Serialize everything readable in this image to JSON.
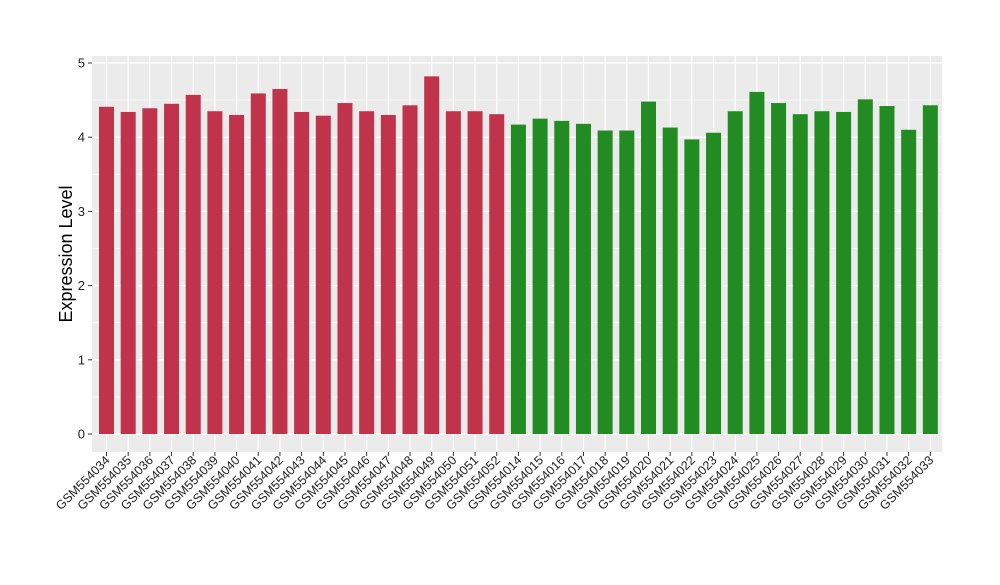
{
  "chart_data": {
    "type": "bar",
    "title": "",
    "xlabel": "",
    "ylabel": "Expression Level",
    "ylim": [
      0,
      5
    ],
    "yticks": [
      0,
      1,
      2,
      3,
      4,
      5
    ],
    "grid": true,
    "legend": "none",
    "categories": [
      "GSM554034",
      "GSM554035",
      "GSM554036",
      "GSM554037",
      "GSM554038",
      "GSM554039",
      "GSM554040",
      "GSM554041",
      "GSM554042",
      "GSM554043",
      "GSM554044",
      "GSM554045",
      "GSM554046",
      "GSM554047",
      "GSM554048",
      "GSM554049",
      "GSM554050",
      "GSM554051",
      "GSM554052",
      "GSM554014",
      "GSM554015",
      "GSM554016",
      "GSM554017",
      "GSM554018",
      "GSM554019",
      "GSM554020",
      "GSM554021",
      "GSM554022",
      "GSM554023",
      "GSM554024",
      "GSM554025",
      "GSM554026",
      "GSM554027",
      "GSM554028",
      "GSM554029",
      "GSM554030",
      "GSM554031",
      "GSM554032",
      "GSM554033"
    ],
    "values": [
      4.41,
      4.34,
      4.39,
      4.45,
      4.57,
      4.35,
      4.3,
      4.59,
      4.65,
      4.34,
      4.29,
      4.46,
      4.35,
      4.3,
      4.43,
      4.82,
      4.35,
      4.35,
      4.31,
      4.17,
      4.25,
      4.22,
      4.18,
      4.09,
      4.09,
      4.48,
      4.13,
      3.97,
      4.06,
      4.35,
      4.61,
      4.46,
      4.31,
      4.35,
      4.34,
      4.51,
      4.42,
      4.1,
      4.43
    ],
    "bar_colors": [
      "#c0334a",
      "#c0334a",
      "#c0334a",
      "#c0334a",
      "#c0334a",
      "#c0334a",
      "#c0334a",
      "#c0334a",
      "#c0334a",
      "#c0334a",
      "#c0334a",
      "#c0334a",
      "#c0334a",
      "#c0334a",
      "#c0334a",
      "#c0334a",
      "#c0334a",
      "#c0334a",
      "#c0334a",
      "#228b22",
      "#228b22",
      "#228b22",
      "#228b22",
      "#228b22",
      "#228b22",
      "#228b22",
      "#228b22",
      "#228b22",
      "#228b22",
      "#228b22",
      "#228b22",
      "#228b22",
      "#228b22",
      "#228b22",
      "#228b22",
      "#228b22",
      "#228b22",
      "#228b22",
      "#228b22"
    ],
    "panel_background": "#ebebeb",
    "grid_color": "#ffffff"
  }
}
